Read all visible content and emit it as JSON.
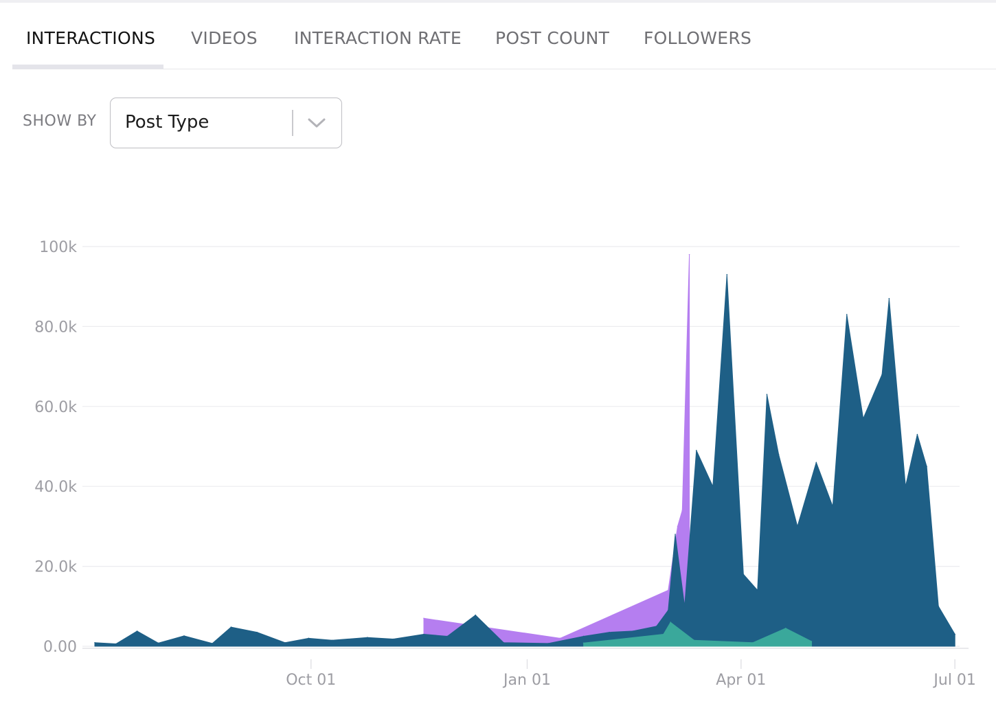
{
  "tabs": [
    {
      "label": "INTERACTIONS",
      "active": true
    },
    {
      "label": "VIDEOS",
      "active": false
    },
    {
      "label": "INTERACTION RATE",
      "active": false
    },
    {
      "label": "POST COUNT",
      "active": false
    },
    {
      "label": "FOLLOWERS",
      "active": false
    }
  ],
  "controls": {
    "show_by_label": "SHOW BY",
    "show_by_value": "Post Type",
    "dropdown_icon": "chevron-down-icon"
  },
  "colors": {
    "series_main": "#1e5f86",
    "series_purple": "#b57ef0",
    "series_teal": "#3aa89b",
    "gridline": "#ececef",
    "axis_text": "#9d9da3"
  },
  "chart_data": {
    "type": "area",
    "stacked": true,
    "title": "",
    "xlabel": "",
    "ylabel": "",
    "x_range": [
      "2023-07-01",
      "2024-07-03"
    ],
    "ylim": [
      0,
      100000
    ],
    "y_ticks": [
      0,
      20000,
      40000,
      60000,
      80000,
      100000
    ],
    "y_tick_labels": [
      "0.00",
      "20.0k",
      "40.0k",
      "60.0k",
      "80.0k",
      "100k"
    ],
    "x_ticks": [
      "2023-10-01",
      "2024-01-01",
      "2024-04-01",
      "2024-07-01"
    ],
    "x_tick_labels": [
      "Oct 01",
      "Jan 01",
      "Apr 01",
      "Jul 01"
    ],
    "grid": true,
    "legend": "none",
    "series": [
      {
        "color": "#1e5f86",
        "points": [
          [
            "2023-07-01",
            900
          ],
          [
            "2023-07-10",
            600
          ],
          [
            "2023-07-19",
            3800
          ],
          [
            "2023-07-28",
            800
          ],
          [
            "2023-08-08",
            2600
          ],
          [
            "2023-08-20",
            700
          ],
          [
            "2023-08-28",
            4800
          ],
          [
            "2023-09-08",
            3500
          ],
          [
            "2023-09-20",
            900
          ],
          [
            "2023-09-30",
            2000
          ],
          [
            "2023-10-10",
            1500
          ],
          [
            "2023-10-25",
            2200
          ],
          [
            "2023-11-05",
            1800
          ],
          [
            "2023-11-18",
            3000
          ],
          [
            "2023-11-28",
            2500
          ],
          [
            "2023-12-10",
            7800
          ],
          [
            "2023-12-22",
            900
          ],
          [
            "2024-01-10",
            700
          ],
          [
            "2024-01-25",
            2500
          ],
          [
            "2024-02-05",
            3500
          ],
          [
            "2024-02-15",
            3800
          ],
          [
            "2024-02-25",
            5000
          ],
          [
            "2024-03-01",
            9000
          ],
          [
            "2024-03-04",
            28000
          ],
          [
            "2024-03-08",
            10000
          ],
          [
            "2024-03-13",
            49000
          ],
          [
            "2024-03-20",
            40000
          ],
          [
            "2024-03-26",
            93000
          ],
          [
            "2024-04-02",
            18000
          ],
          [
            "2024-04-08",
            14000
          ],
          [
            "2024-04-12",
            63000
          ],
          [
            "2024-04-17",
            48000
          ],
          [
            "2024-04-25",
            30000
          ],
          [
            "2024-05-03",
            46000
          ],
          [
            "2024-05-10",
            35000
          ],
          [
            "2024-05-16",
            83000
          ],
          [
            "2024-05-23",
            57000
          ],
          [
            "2024-05-31",
            68000
          ],
          [
            "2024-06-03",
            87000
          ],
          [
            "2024-06-10",
            40000
          ],
          [
            "2024-06-15",
            53000
          ],
          [
            "2024-06-19",
            45000
          ],
          [
            "2024-06-24",
            10000
          ],
          [
            "2024-07-01",
            3000
          ]
        ]
      },
      {
        "color": "#b57ef0",
        "points": [
          [
            "2023-11-18",
            7000
          ],
          [
            "2024-01-15",
            2000
          ],
          [
            "2024-03-01",
            14000
          ],
          [
            "2024-03-05",
            30000
          ],
          [
            "2024-03-07",
            34000
          ],
          [
            "2024-03-10",
            98000
          ]
        ]
      },
      {
        "color": "#3aa89b",
        "points": [
          [
            "2024-01-25",
            800
          ],
          [
            "2024-02-28",
            3000
          ],
          [
            "2024-03-02",
            6000
          ],
          [
            "2024-03-12",
            1500
          ],
          [
            "2024-04-06",
            900
          ],
          [
            "2024-04-20",
            4500
          ],
          [
            "2024-05-01",
            1200
          ]
        ]
      }
    ]
  }
}
